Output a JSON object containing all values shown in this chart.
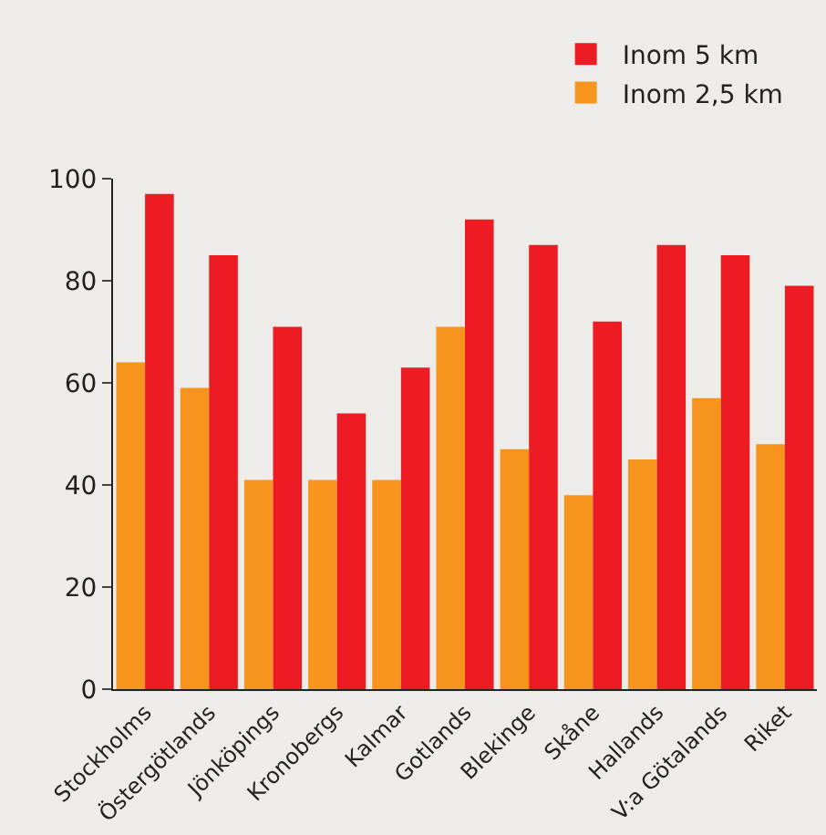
{
  "chart_data": {
    "type": "bar",
    "categories": [
      "Stockholms",
      "Östergötlands",
      "Jönköpings",
      "Kronobergs",
      "Kalmar",
      "Gotlands",
      "Blekinge",
      "Skåne",
      "Hallands",
      "V:a Götalands",
      "Riket"
    ],
    "series": [
      {
        "name": "Inom 2,5 km",
        "color": "#f7941d",
        "values": [
          64,
          59,
          41,
          41,
          41,
          71,
          47,
          38,
          45,
          57,
          48
        ]
      },
      {
        "name": "Inom 5 km",
        "color": "#ed1c24",
        "values": [
          97,
          85,
          71,
          54,
          63,
          92,
          87,
          72,
          87,
          85,
          79
        ]
      }
    ],
    "ylim": [
      0,
      100
    ],
    "yticks": [
      0,
      20,
      40,
      60,
      80,
      100
    ],
    "grid": false,
    "legend": "top right"
  }
}
